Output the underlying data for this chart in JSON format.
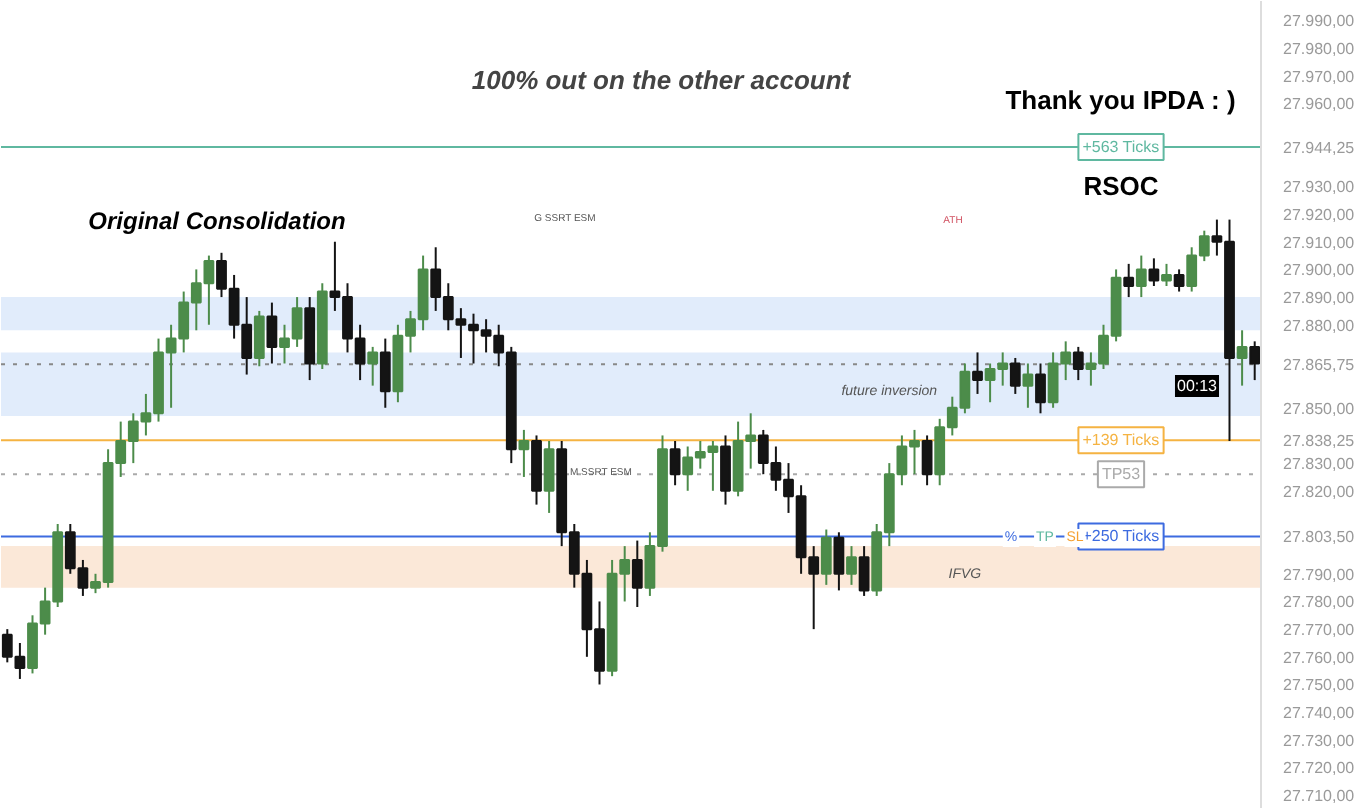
{
  "chart_data": {
    "type": "candlestick",
    "title": "100% out on the other account",
    "categories": [
      null,
      null,
      null,
      null,
      null,
      null,
      null,
      null,
      null,
      null,
      null,
      null,
      null,
      null,
      null,
      null,
      null,
      null,
      null,
      null,
      null,
      null,
      null,
      null,
      null,
      null,
      null,
      null,
      null,
      null,
      null,
      null,
      null,
      null,
      null,
      null,
      null,
      null,
      null,
      null,
      null,
      null,
      null,
      null,
      null,
      null,
      null,
      null,
      null,
      null,
      null,
      null,
      null,
      null,
      null,
      null,
      null,
      null,
      null,
      null,
      null,
      null,
      null,
      null,
      null,
      null,
      null,
      null,
      null,
      null,
      null,
      null,
      null,
      null,
      null,
      null,
      null,
      null,
      null,
      null,
      null,
      null,
      null,
      null,
      null,
      null,
      null,
      null,
      null,
      null,
      null,
      null,
      null,
      null,
      null,
      null,
      null,
      null,
      null,
      null
    ],
    "ohlc": [
      [
        27768,
        27770,
        27758,
        27760
      ],
      [
        27760,
        27765,
        27752,
        27756
      ],
      [
        27756,
        27775,
        27754,
        27772
      ],
      [
        27772,
        27785,
        27768,
        27780
      ],
      [
        27780,
        27808,
        27778,
        27805
      ],
      [
        27805,
        27808,
        27790,
        27792
      ],
      [
        27792,
        27795,
        27782,
        27785
      ],
      [
        27785,
        27790,
        27783,
        27787
      ],
      [
        27787,
        27835,
        27785,
        27830
      ],
      [
        27830,
        27845,
        27825,
        27838
      ],
      [
        27838,
        27848,
        27830,
        27845
      ],
      [
        27845,
        27855,
        27840,
        27848
      ],
      [
        27848,
        27875,
        27845,
        27870
      ],
      [
        27870,
        27880,
        27850,
        27875
      ],
      [
        27875,
        27892,
        27870,
        27888
      ],
      [
        27888,
        27900,
        27878,
        27895
      ],
      [
        27895,
        27905,
        27880,
        27903
      ],
      [
        27903,
        27906,
        27890,
        27893
      ],
      [
        27893,
        27898,
        27875,
        27880
      ],
      [
        27880,
        27890,
        27862,
        27868
      ],
      [
        27868,
        27885,
        27865,
        27883
      ],
      [
        27883,
        27888,
        27866,
        27872
      ],
      [
        27872,
        27880,
        27866,
        27875
      ],
      [
        27875,
        27890,
        27872,
        27886
      ],
      [
        27886,
        27890,
        27860,
        27866
      ],
      [
        27866,
        27895,
        27864,
        27892
      ],
      [
        27892,
        27910,
        27885,
        27890
      ],
      [
        27890,
        27895,
        27870,
        27875
      ],
      [
        27875,
        27880,
        27860,
        27866
      ],
      [
        27866,
        27872,
        27858,
        27870
      ],
      [
        27870,
        27875,
        27850,
        27856
      ],
      [
        27856,
        27880,
        27852,
        27876
      ],
      [
        27876,
        27885,
        27870,
        27882
      ],
      [
        27882,
        27905,
        27878,
        27900
      ],
      [
        27900,
        27908,
        27885,
        27890
      ],
      [
        27890,
        27895,
        27878,
        27882
      ],
      [
        27882,
        27886,
        27868,
        27880
      ],
      [
        27880,
        27884,
        27866,
        27878
      ],
      [
        27878,
        27882,
        27870,
        27876
      ],
      [
        27876,
        27880,
        27865,
        27870
      ],
      [
        27870,
        27872,
        27830,
        27835
      ],
      [
        27835,
        27842,
        27825,
        27838
      ],
      [
        27838,
        27840,
        27815,
        27820
      ],
      [
        27820,
        27838,
        27812,
        27835
      ],
      [
        27835,
        27838,
        27800,
        27805
      ],
      [
        27805,
        27808,
        27785,
        27790
      ],
      [
        27790,
        27795,
        27760,
        27770
      ],
      [
        27770,
        27780,
        27750,
        27755
      ],
      [
        27755,
        27795,
        27753,
        27790
      ],
      [
        27790,
        27800,
        27780,
        27795
      ],
      [
        27795,
        27802,
        27778,
        27785
      ],
      [
        27785,
        27805,
        27782,
        27800
      ],
      [
        27800,
        27840,
        27798,
        27835
      ],
      [
        27835,
        27838,
        27822,
        27826
      ],
      [
        27826,
        27836,
        27820,
        27832
      ],
      [
        27832,
        27838,
        27828,
        27834
      ],
      [
        27834,
        27838,
        27820,
        27836
      ],
      [
        27836,
        27840,
        27815,
        27820
      ],
      [
        27820,
        27845,
        27818,
        27838
      ],
      [
        27838,
        27848,
        27828,
        27840
      ],
      [
        27840,
        27842,
        27826,
        27830
      ],
      [
        27830,
        27836,
        27820,
        27824
      ],
      [
        27824,
        27830,
        27812,
        27818
      ],
      [
        27818,
        27822,
        27790,
        27796
      ],
      [
        27796,
        27800,
        27770,
        27790
      ],
      [
        27790,
        27806,
        27786,
        27803
      ],
      [
        27803,
        27805,
        27784,
        27790
      ],
      [
        27790,
        27800,
        27786,
        27796
      ],
      [
        27796,
        27800,
        27782,
        27784
      ],
      [
        27784,
        27808,
        27782,
        27805
      ],
      [
        27805,
        27830,
        27800,
        27826
      ],
      [
        27826,
        27840,
        27822,
        27836
      ],
      [
        27836,
        27842,
        27826,
        27838
      ],
      [
        27838,
        27840,
        27822,
        27826
      ],
      [
        27826,
        27846,
        27822,
        27843
      ],
      [
        27843,
        27854,
        27840,
        27850
      ],
      [
        27850,
        27866,
        27848,
        27863
      ],
      [
        27863,
        27870,
        27855,
        27860
      ],
      [
        27860,
        27866,
        27852,
        27864
      ],
      [
        27864,
        27870,
        27858,
        27866
      ],
      [
        27866,
        27868,
        27855,
        27858
      ],
      [
        27858,
        27866,
        27850,
        27862
      ],
      [
        27862,
        27866,
        27848,
        27852
      ],
      [
        27852,
        27870,
        27850,
        27866
      ],
      [
        27866,
        27874,
        27860,
        27870
      ],
      [
        27870,
        27872,
        27860,
        27864
      ],
      [
        27864,
        27870,
        27858,
        27866
      ],
      [
        27866,
        27880,
        27864,
        27876
      ],
      [
        27876,
        27900,
        27874,
        27897
      ],
      [
        27897,
        27902,
        27890,
        27894
      ],
      [
        27894,
        27905,
        27890,
        27900
      ],
      [
        27900,
        27904,
        27894,
        27896
      ],
      [
        27896,
        27902,
        27894,
        27898
      ],
      [
        27898,
        27900,
        27892,
        27894
      ],
      [
        27894,
        27908,
        27892,
        27905
      ],
      [
        27905,
        27914,
        27903,
        27912
      ],
      [
        27912,
        27918,
        27905,
        27910
      ],
      [
        27910,
        27918,
        27838,
        27868
      ],
      [
        27868,
        27878,
        27858,
        27872
      ],
      [
        27872,
        27874,
        27860,
        27866
      ]
    ],
    "colors": [
      "#141414",
      "#141414",
      "#4c8c4a",
      "#4c8c4a",
      "#4c8c4a",
      "#141414",
      "#141414",
      "#4c8c4a",
      "#4c8c4a",
      "#4c8c4a",
      "#4c8c4a",
      "#4c8c4a",
      "#4c8c4a",
      "#4c8c4a",
      "#4c8c4a",
      "#4c8c4a",
      "#4c8c4a",
      "#141414",
      "#141414",
      "#141414",
      "#4c8c4a",
      "#141414",
      "#4c8c4a",
      "#4c8c4a",
      "#141414",
      "#4c8c4a",
      "#141414",
      "#141414",
      "#141414",
      "#4c8c4a",
      "#141414",
      "#4c8c4a",
      "#4c8c4a",
      "#4c8c4a",
      "#141414",
      "#141414",
      "#141414",
      "#141414",
      "#141414",
      "#141414",
      "#141414",
      "#4c8c4a",
      "#141414",
      "#4c8c4a",
      "#141414",
      "#141414",
      "#141414",
      "#141414",
      "#4c8c4a",
      "#4c8c4a",
      "#141414",
      "#4c8c4a",
      "#4c8c4a",
      "#141414",
      "#4c8c4a",
      "#4c8c4a",
      "#4c8c4a",
      "#141414",
      "#4c8c4a",
      "#4c8c4a",
      "#141414",
      "#141414",
      "#141414",
      "#141414",
      "#141414",
      "#4c8c4a",
      "#141414",
      "#4c8c4a",
      "#141414",
      "#4c8c4a",
      "#4c8c4a",
      "#4c8c4a",
      "#4c8c4a",
      "#141414",
      "#4c8c4a",
      "#4c8c4a",
      "#4c8c4a",
      "#141414",
      "#4c8c4a",
      "#4c8c4a",
      "#141414",
      "#4c8c4a",
      "#141414",
      "#4c8c4a",
      "#4c8c4a",
      "#141414",
      "#4c8c4a",
      "#4c8c4a",
      "#4c8c4a",
      "#141414",
      "#4c8c4a",
      "#141414",
      "#4c8c4a",
      "#141414",
      "#4c8c4a",
      "#4c8c4a",
      "#141414",
      "#141414",
      "#4c8c4a",
      "#141414"
    ],
    "ylim": [
      27705,
      27997
    ],
    "yticks": [
      {
        "value": 27710,
        "label": "27.710,00"
      },
      {
        "value": 27720,
        "label": "27.720,00"
      },
      {
        "value": 27730,
        "label": "27.730,00"
      },
      {
        "value": 27740,
        "label": "27.740,00"
      },
      {
        "value": 27750,
        "label": "27.750,00"
      },
      {
        "value": 27760,
        "label": "27.760,00"
      },
      {
        "value": 27770,
        "label": "27.770,00"
      },
      {
        "value": 27780,
        "label": "27.780,00"
      },
      {
        "value": 27790,
        "label": "27.790,00"
      },
      {
        "value": 27803.5,
        "label": "27.803,50"
      },
      {
        "value": 27820,
        "label": "27.820,00"
      },
      {
        "value": 27830,
        "label": "27.830,00"
      },
      {
        "value": 27838.25,
        "label": "27.838,25"
      },
      {
        "value": 27850,
        "label": "27.850,00"
      },
      {
        "value": 27865.75,
        "label": "27.865,75"
      },
      {
        "value": 27880,
        "label": "27.880,00"
      },
      {
        "value": 27890,
        "label": "27.890,00"
      },
      {
        "value": 27900,
        "label": "27.900,00"
      },
      {
        "value": 27910,
        "label": "27.910,00"
      },
      {
        "value": 27920,
        "label": "27.920,00"
      },
      {
        "value": 27930,
        "label": "27.930,00"
      },
      {
        "value": 27944.25,
        "label": "27.944,25"
      },
      {
        "value": 27960,
        "label": "27.960,00"
      },
      {
        "value": 27970,
        "label": "27.970,00"
      },
      {
        "value": 27980,
        "label": "27.980,00"
      },
      {
        "value": 27990,
        "label": "27.990,00"
      }
    ],
    "tick_labels": "y",
    "grid": false,
    "ref_lines": [
      {
        "axis": "y",
        "value": 27944.25,
        "label": "+563 Ticks",
        "color": "#5fb8a0",
        "line_style": "solid"
      },
      {
        "axis": "y",
        "value": 27838.25,
        "label": "+139 Ticks",
        "color": "#f5b342",
        "line_style": "solid"
      },
      {
        "axis": "y",
        "value": 27803.5,
        "label": "+250 Ticks",
        "color": "#3d6be0",
        "line_style": "solid"
      },
      {
        "axis": "y",
        "value": 27865.75,
        "color": "#888888",
        "line_style": "dotted"
      },
      {
        "axis": "y",
        "value": 27826,
        "label": "TP53",
        "color": "#aaaaaa",
        "line_style": "dotted"
      }
    ],
    "bands": [
      {
        "axis": "y",
        "from": 27847,
        "to": 27870,
        "label": "future inversion",
        "color": "#c9dcf7"
      },
      {
        "axis": "y",
        "from": 27785,
        "to": 27800,
        "label": "IFVG",
        "color": "#f8d5b8"
      },
      {
        "axis": "y",
        "from": 27878,
        "to": 27890,
        "color": "#c9dcf7"
      }
    ],
    "annotations": [
      "Thank you IPDA : )",
      "Original Consolidation",
      "RSOC",
      "G SSRT ESM",
      "M SSRT ESM",
      "ATH",
      "%",
      "TP",
      "SL",
      "00:13"
    ]
  }
}
